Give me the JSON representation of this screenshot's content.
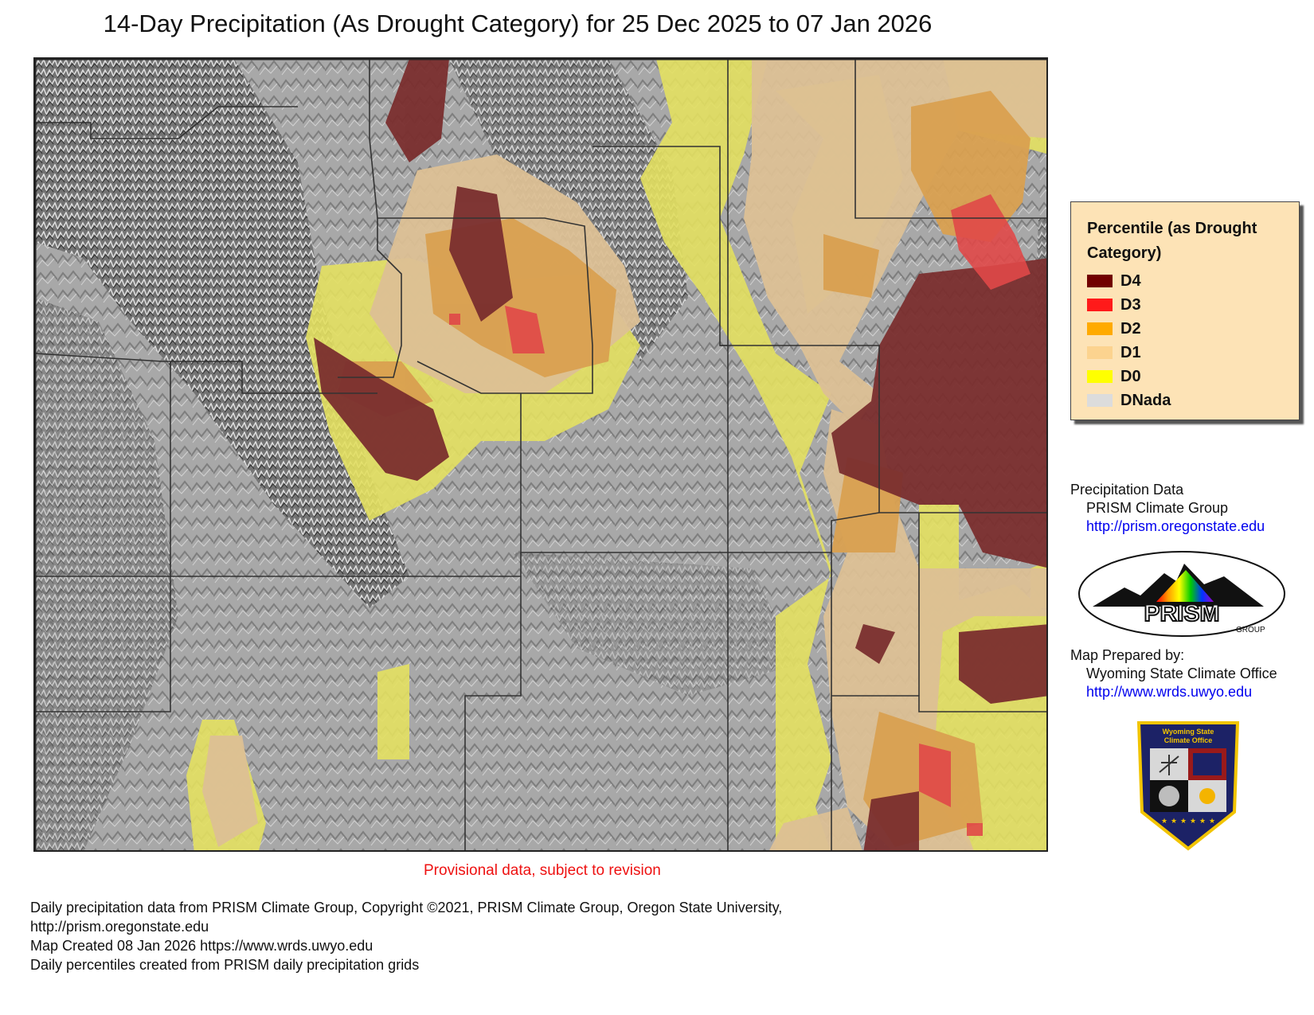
{
  "title": "14-Day Precipitation (As Drought Category) for 25 Dec 2025 to 07 Jan 2026",
  "legend": {
    "title_line1": "Percentile (as Drought",
    "title_line2": "Category)",
    "items": [
      {
        "label": "D4",
        "color": "#720000"
      },
      {
        "label": "D3",
        "color": "#ff1a1a"
      },
      {
        "label": "D2",
        "color": "#ffaa00"
      },
      {
        "label": "D1",
        "color": "#fcd38f"
      },
      {
        "label": "D0",
        "color": "#ffff00"
      },
      {
        "label": "DNada",
        "color": "#dcdcdc"
      }
    ]
  },
  "credits": {
    "data_heading": "Precipitation Data",
    "data_source": "PRISM Climate Group",
    "data_url": "http://prism.oregonstate.edu",
    "prepared_heading": "Map Prepared by:",
    "prepared_by": "Wyoming State Climate Office",
    "prepared_url": "http://www.wrds.uwyo.edu"
  },
  "prism_logo": {
    "text": "PRISM",
    "subtext": "GROUP"
  },
  "badge": {
    "line1": "Wyoming State",
    "line2": "Climate Office"
  },
  "provisional": "Provisional data, subject to revision",
  "footer": [
    "Daily precipitation data from PRISM Climate Group, Copyright ©2021, PRISM Climate Group, Oregon State University,",
    "http://prism.oregonstate.edu",
    "Map Created 08 Jan 2026 https://www.wrds.uwyo.edu",
    "Daily percentiles created from PRISM daily precipitation grids"
  ],
  "map_colors": {
    "background": "#a8a8a8",
    "d4": "#7a2e2e",
    "d3": "#e04848",
    "d2": "#d9a050",
    "d1": "#dcc095",
    "d0": "#e3e060",
    "county": "#333333"
  }
}
